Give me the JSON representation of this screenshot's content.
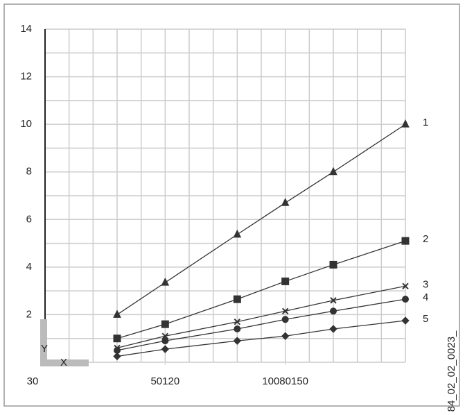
{
  "chart_data": {
    "type": "line",
    "xlabel": "X",
    "ylabel": "Y",
    "side_note": "84_02_02_0023_",
    "x": [
      3,
      5,
      8,
      10,
      12,
      15
    ],
    "xlim": [
      0,
      15
    ],
    "xticks": [
      {
        "value": 0,
        "label": "30"
      },
      {
        "value": 5,
        "label": "50120"
      },
      {
        "value": 10,
        "label": "10080150"
      }
    ],
    "ylim": [
      0,
      14
    ],
    "yticks": [
      2,
      4,
      6,
      8,
      10,
      12,
      14
    ],
    "grid": true,
    "series": [
      {
        "name": "1",
        "color": "#333333",
        "marker": "triangle",
        "values": [
          2.0,
          3.35,
          5.37,
          6.7,
          8.0,
          10.0
        ]
      },
      {
        "name": "2",
        "color": "#333333",
        "marker": "square",
        "values": [
          1.0,
          1.6,
          2.65,
          3.4,
          4.1,
          5.1
        ]
      },
      {
        "name": "3",
        "color": "#333333",
        "marker": "cross",
        "values": [
          0.6,
          1.1,
          1.7,
          2.15,
          2.6,
          3.2
        ]
      },
      {
        "name": "4",
        "color": "#333333",
        "marker": "circle",
        "values": [
          0.5,
          0.9,
          1.4,
          1.8,
          2.15,
          2.65
        ]
      },
      {
        "name": "5",
        "color": "#333333",
        "marker": "diamond",
        "values": [
          0.25,
          0.55,
          0.9,
          1.1,
          1.4,
          1.75
        ]
      }
    ]
  }
}
